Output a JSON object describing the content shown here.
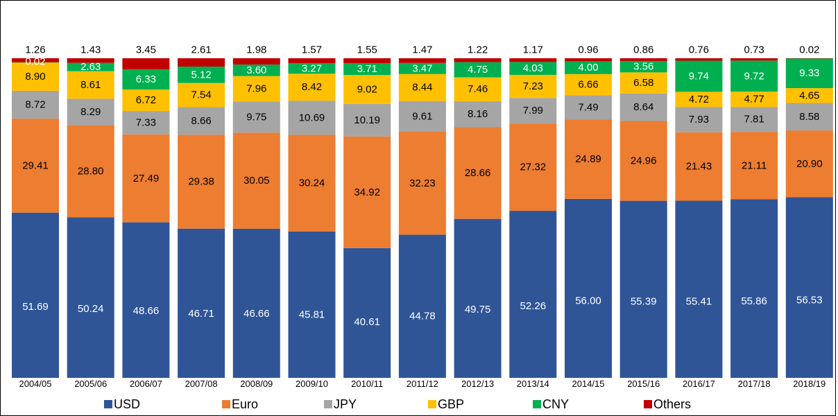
{
  "chart_data": {
    "type": "bar",
    "stacked": true,
    "normalized_percent": true,
    "categories": [
      "2004/05",
      "2005/06",
      "2006/07",
      "2007/08",
      "2008/09",
      "2009/10",
      "2010/11",
      "2011/12",
      "2012/13",
      "2013/14",
      "2014/15",
      "2015/16",
      "2016/17",
      "2017/18",
      "2018/19"
    ],
    "series": [
      {
        "name": "USD",
        "color": "#2F5597",
        "label_color": "#ffffff",
        "values": [
          51.69,
          50.24,
          48.66,
          46.71,
          46.66,
          45.81,
          40.61,
          44.78,
          49.75,
          52.26,
          56.0,
          55.39,
          55.41,
          55.86,
          56.53
        ]
      },
      {
        "name": "Euro",
        "color": "#ED7D31",
        "label_color": "#000000",
        "values": [
          29.41,
          28.8,
          27.49,
          29.38,
          30.05,
          30.24,
          34.92,
          32.23,
          28.66,
          27.32,
          24.89,
          24.96,
          21.43,
          21.11,
          20.9
        ]
      },
      {
        "name": "JPY",
        "color": "#A5A5A5",
        "label_color": "#000000",
        "values": [
          8.72,
          8.29,
          7.33,
          8.66,
          9.75,
          10.69,
          10.19,
          9.61,
          8.16,
          7.99,
          7.49,
          8.64,
          7.93,
          7.81,
          8.58
        ]
      },
      {
        "name": "GBP",
        "color": "#FFC000",
        "label_color": "#000000",
        "values": [
          8.9,
          8.61,
          6.72,
          7.54,
          7.96,
          8.42,
          9.02,
          8.44,
          7.46,
          7.23,
          6.66,
          6.58,
          4.72,
          4.77,
          4.65
        ]
      },
      {
        "name": "CNY",
        "color": "#00B050",
        "label_color": "#ffffff",
        "values": [
          0.02,
          2.63,
          6.33,
          5.12,
          3.6,
          3.27,
          3.71,
          3.47,
          4.75,
          4.03,
          4.0,
          3.56,
          9.74,
          9.72,
          9.33
        ]
      },
      {
        "name": "Others",
        "color": "#C00000",
        "label_color": "#000000",
        "values": [
          1.26,
          1.43,
          3.45,
          2.61,
          1.98,
          1.57,
          1.55,
          1.47,
          1.22,
          1.17,
          0.96,
          0.86,
          0.76,
          0.73,
          0.02
        ]
      }
    ],
    "value_labels": {
      "USD": [
        "51.69",
        "50.24",
        "48.66",
        "46.71",
        "46.66",
        "45.81",
        "40.61",
        "44.78",
        "49.75",
        "52.26",
        "56.00",
        "55.39",
        "55.41",
        "55.86",
        "56.53"
      ],
      "Euro": [
        "29.41",
        "28.80",
        "27.49",
        "29.38",
        "30.05",
        "30.24",
        "34.92",
        "32.23",
        "28.66",
        "27.32",
        "24.89",
        "24.96",
        "21.43",
        "21.11",
        "20.90"
      ],
      "JPY": [
        "8.72",
        "8.29",
        "7.33",
        "8.66",
        "9.75",
        "10.69",
        "10.19",
        "9.61",
        "8.16",
        "7.99",
        "7.49",
        "8.64",
        "7.93",
        "7.81",
        "8.58"
      ],
      "GBP": [
        "8.90",
        "8.61",
        "6.72",
        "7.54",
        "7.96",
        "8.42",
        "9.02",
        "8.44",
        "7.46",
        "7.23",
        "6.66",
        "6.58",
        "4.72",
        "4.77",
        "4.65"
      ],
      "CNY": [
        "0.02",
        "2.63",
        "6.33",
        "5.12",
        "3.60",
        "3.27",
        "3.71",
        "3.47",
        "4.75",
        "4.03",
        "4.00",
        "3.56",
        "9.74",
        "9.72",
        "9.33"
      ],
      "Others": [
        "1.26",
        "1.43",
        "3.45",
        "2.61",
        "1.98",
        "1.57",
        "1.55",
        "1.47",
        "1.22",
        "1.17",
        "0.96",
        "0.86",
        "0.76",
        "0.73",
        "0.02"
      ]
    },
    "title": "",
    "xlabel": "",
    "ylabel": "",
    "ylim": [
      0,
      100
    ],
    "grid": false,
    "legend_position": "bottom"
  }
}
